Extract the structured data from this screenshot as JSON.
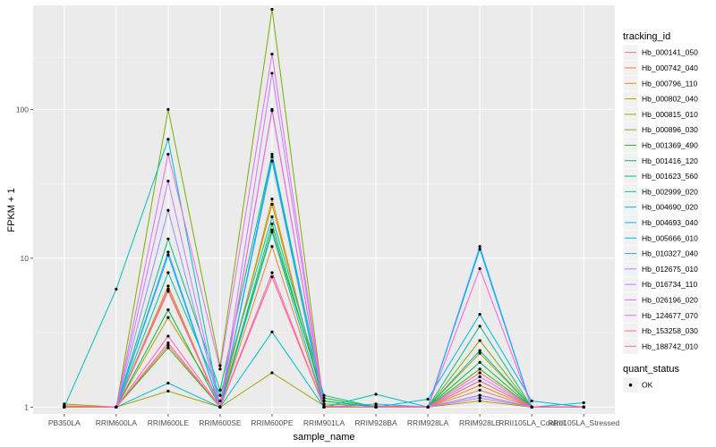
{
  "chart_data": {
    "type": "line",
    "xlabel": "sample_name",
    "ylabel": "FPKM + 1",
    "y_scale": "log10",
    "ylim": [
      0.9,
      500
    ],
    "y_ticks": [
      1,
      10,
      100
    ],
    "y_tick_labels": [
      "1",
      "10",
      "100"
    ],
    "grid": true,
    "legend_position": "right",
    "categories": [
      "PB350LA",
      "RRIM600LA",
      "RRIM600LE",
      "RRIM600SE",
      "RRIM600PE",
      "RRIM901LA",
      "RRIM928BA",
      "RRIM928LA",
      "RRIM928LE",
      "RRII105LA_Control",
      "RRII105LA_Stressed"
    ],
    "legend_color": {
      "title": "tracking_id",
      "entries": [
        "Hb_000141_050",
        "Hb_000742_040",
        "Hb_000796_110",
        "Hb_000802_040",
        "Hb_000815_010",
        "Hb_000896_030",
        "Hb_001369_490",
        "Hb_001416_120",
        "Hb_001623_560",
        "Hb_002999_020",
        "Hb_004690_020",
        "Hb_004693_040",
        "Hb_005666_010",
        "Hb_010327_040",
        "Hb_012675_010",
        "Hb_016734_110",
        "Hb_026196_020",
        "Hb_124677_070",
        "Hb_153258_030",
        "Hb_188742_010"
      ],
      "colors": [
        "#F8766D",
        "#EA8331",
        "#D89000",
        "#C09B00",
        "#A3A500",
        "#7CAE00",
        "#39B600",
        "#00BB4E",
        "#00BF7D",
        "#00C1A3",
        "#00BFC4",
        "#00BAE0",
        "#00B0F6",
        "#35A2FF",
        "#9590FF",
        "#C77CFF",
        "#E76BF3",
        "#FA62DB",
        "#FF62BC",
        "#FF6C91"
      ]
    },
    "legend_shape": {
      "title": "quant_status",
      "entries": [
        "OK"
      ]
    },
    "series": [
      {
        "name": "Hb_000141_050",
        "values": [
          1.0,
          1.0,
          2.6,
          1.0,
          7.5,
          1.0,
          1.0,
          1.0,
          1.3,
          1.0,
          1.0
        ]
      },
      {
        "name": "Hb_000742_040",
        "values": [
          1.0,
          1.0,
          6.0,
          1.0,
          12.0,
          1.0,
          1.0,
          1.0,
          1.5,
          1.0,
          1.0
        ]
      },
      {
        "name": "Hb_000796_110",
        "values": [
          1.0,
          1.0,
          6.5,
          1.0,
          25.0,
          1.0,
          1.0,
          1.0,
          1.4,
          1.0,
          1.0
        ]
      },
      {
        "name": "Hb_000802_040",
        "values": [
          1.02,
          1.0,
          4.0,
          1.1,
          23.0,
          1.05,
          1.02,
          1.0,
          2.3,
          1.0,
          1.0
        ]
      },
      {
        "name": "Hb_000815_010",
        "values": [
          1.05,
          1.0,
          1.28,
          1.0,
          1.7,
          1.02,
          1.0,
          1.0,
          1.1,
          1.0,
          1.0
        ]
      },
      {
        "name": "Hb_000896_030",
        "values": [
          1.0,
          1.0,
          100.0,
          1.9,
          470.0,
          1.0,
          1.0,
          1.0,
          2.8,
          1.0,
          1.0
        ]
      },
      {
        "name": "Hb_001369_490",
        "values": [
          1.0,
          1.0,
          2.5,
          1.0,
          15.5,
          1.15,
          1.0,
          1.0,
          1.8,
          1.0,
          1.0
        ]
      },
      {
        "name": "Hb_001416_120",
        "values": [
          1.0,
          1.0,
          4.5,
          1.0,
          17.0,
          1.1,
          1.0,
          1.0,
          2.0,
          1.0,
          1.0
        ]
      },
      {
        "name": "Hb_001623_560",
        "values": [
          1.0,
          1.0,
          13.5,
          1.3,
          50.0,
          1.1,
          1.0,
          1.0,
          3.5,
          1.0,
          1.0
        ]
      },
      {
        "name": "Hb_002999_020",
        "values": [
          1.0,
          1.0,
          8.0,
          1.2,
          19.0,
          1.2,
          1.0,
          1.0,
          2.4,
          1.0,
          1.0
        ]
      },
      {
        "name": "Hb_004690_020",
        "values": [
          1.0,
          6.2,
          63.0,
          1.0,
          3.2,
          1.0,
          1.22,
          1.0,
          1.2,
          1.0,
          1.07
        ]
      },
      {
        "name": "Hb_004693_040",
        "values": [
          1.0,
          1.0,
          1.45,
          1.0,
          15.0,
          1.0,
          1.0,
          1.13,
          4.2,
          1.1,
          1.0
        ]
      },
      {
        "name": "Hb_005666_010",
        "values": [
          1.0,
          1.0,
          10.5,
          1.0,
          48.0,
          1.0,
          1.0,
          1.0,
          11.5,
          1.0,
          1.0
        ]
      },
      {
        "name": "Hb_010327_040",
        "values": [
          1.0,
          1.0,
          11.0,
          1.0,
          45.0,
          1.0,
          1.05,
          1.0,
          12.0,
          1.0,
          1.0
        ]
      },
      {
        "name": "Hb_012675_010",
        "values": [
          1.0,
          1.0,
          21.0,
          1.0,
          100.0,
          1.0,
          1.0,
          1.0,
          1.2,
          1.0,
          1.0
        ]
      },
      {
        "name": "Hb_016734_110",
        "values": [
          1.0,
          1.0,
          33.0,
          1.0,
          175.0,
          1.0,
          1.0,
          1.0,
          1.6,
          1.0,
          1.0
        ]
      },
      {
        "name": "Hb_026196_020",
        "values": [
          1.0,
          1.0,
          50.0,
          1.8,
          235.0,
          1.0,
          1.0,
          1.0,
          1.15,
          1.0,
          1.0
        ]
      },
      {
        "name": "Hb_124677_070",
        "values": [
          1.0,
          1.0,
          6.2,
          1.0,
          98.0,
          1.0,
          1.0,
          1.0,
          8.5,
          1.0,
          1.0
        ]
      },
      {
        "name": "Hb_153258_030",
        "values": [
          1.0,
          1.0,
          3.0,
          1.0,
          8.0,
          1.0,
          1.0,
          1.0,
          1.5,
          1.0,
          1.0
        ]
      },
      {
        "name": "Hb_188742_010",
        "values": [
          1.0,
          1.0,
          2.7,
          1.0,
          7.5,
          1.0,
          1.0,
          1.0,
          1.7,
          1.0,
          1.0
        ]
      }
    ]
  }
}
